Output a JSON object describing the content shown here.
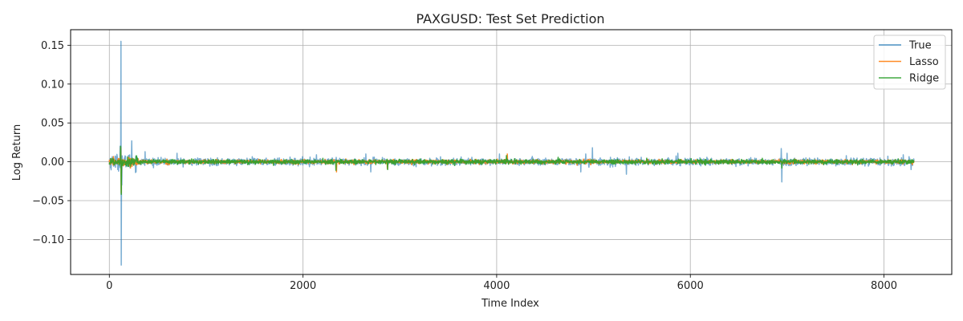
{
  "chart_data": {
    "type": "line",
    "title": "PAXGUSD: Test Set Prediction",
    "xlabel": "Time Index",
    "ylabel": "Log Return",
    "xlim": [
      -400,
      8700
    ],
    "ylim": [
      -0.145,
      0.17
    ],
    "xticks": [
      0,
      2000,
      4000,
      6000,
      8000
    ],
    "xtick_labels": [
      "0",
      "2000",
      "4000",
      "6000",
      "8000"
    ],
    "yticks": [
      -0.1,
      -0.05,
      0.0,
      0.05,
      0.1,
      0.15
    ],
    "ytick_labels": [
      "−0.10",
      "−0.05",
      "0.00",
      "0.05",
      "0.10",
      "0.15"
    ],
    "grid": true,
    "legend_position": "top-right",
    "n_points": 8310,
    "series": [
      {
        "name": "True",
        "color": "#1f77b4",
        "opacity": 0.6,
        "baseline_std": 0.0022,
        "spikes": [
          {
            "x": 120,
            "y": 0.155
          },
          {
            "x": 123,
            "y": -0.133
          },
          {
            "x": 110,
            "y": 0.02
          },
          {
            "x": 130,
            "y": -0.03
          },
          {
            "x": 232,
            "y": 0.027
          },
          {
            "x": 370,
            "y": 0.013
          },
          {
            "x": 700,
            "y": 0.011
          },
          {
            "x": 2140,
            "y": 0.009
          },
          {
            "x": 2650,
            "y": 0.01
          },
          {
            "x": 2700,
            "y": -0.013
          },
          {
            "x": 4030,
            "y": 0.01
          },
          {
            "x": 4870,
            "y": -0.013
          },
          {
            "x": 4920,
            "y": 0.01
          },
          {
            "x": 4990,
            "y": 0.018
          },
          {
            "x": 5340,
            "y": -0.016
          },
          {
            "x": 5870,
            "y": 0.011
          },
          {
            "x": 6940,
            "y": 0.017
          },
          {
            "x": 6945,
            "y": -0.026
          },
          {
            "x": 7000,
            "y": 0.011
          },
          {
            "x": 8200,
            "y": 0.009
          },
          {
            "x": 8280,
            "y": -0.01
          }
        ]
      },
      {
        "name": "Lasso",
        "color": "#ff7f0e",
        "opacity": 0.9,
        "baseline_std": 0.0012,
        "spikes": [
          {
            "x": 118,
            "y": 0.018
          },
          {
            "x": 124,
            "y": -0.04
          },
          {
            "x": 2345,
            "y": -0.013
          },
          {
            "x": 2870,
            "y": -0.009
          },
          {
            "x": 4110,
            "y": 0.01
          }
        ]
      },
      {
        "name": "Ridge",
        "color": "#2ca02c",
        "opacity": 0.9,
        "baseline_std": 0.0014,
        "spikes": [
          {
            "x": 116,
            "y": 0.02
          },
          {
            "x": 124,
            "y": -0.042
          },
          {
            "x": 2340,
            "y": -0.011
          },
          {
            "x": 2875,
            "y": -0.01
          },
          {
            "x": 4100,
            "y": 0.008
          },
          {
            "x": 6945,
            "y": -0.008
          }
        ]
      }
    ]
  }
}
